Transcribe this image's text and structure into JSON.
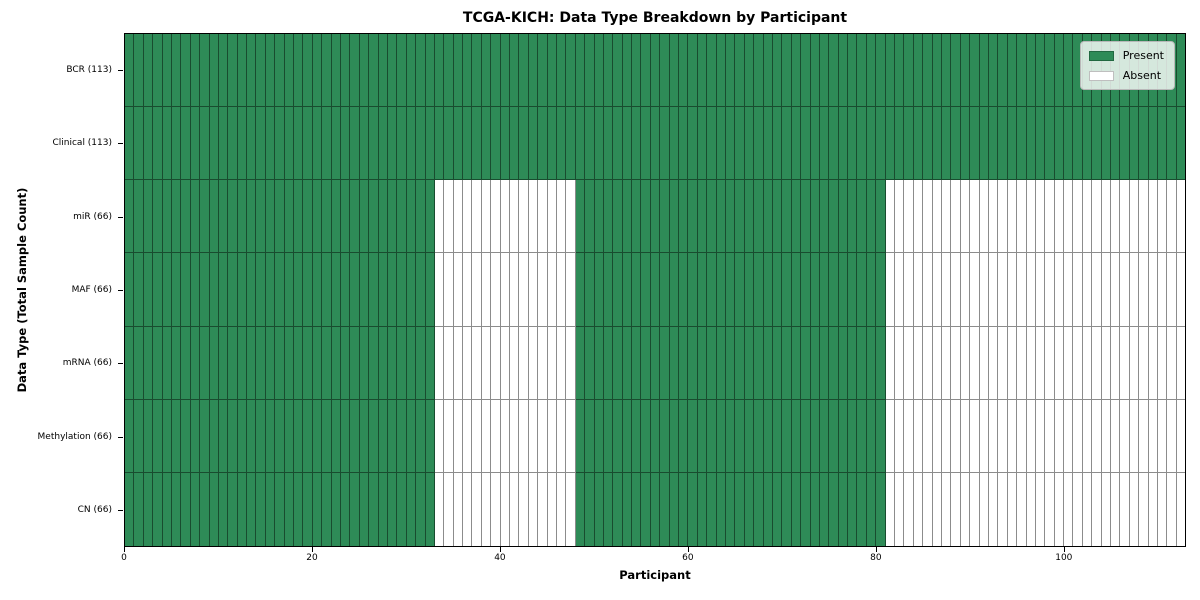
{
  "chart_data": {
    "type": "heatmap",
    "title": "TCGA-KICH: Data Type Breakdown by Participant",
    "xlabel": "Participant",
    "ylabel": "Data Type (Total Sample Count)",
    "n_participants": 113,
    "x_axis_range": [
      0,
      113
    ],
    "x_ticks": [
      0,
      20,
      40,
      60,
      80,
      100
    ],
    "colors": {
      "present": "#2e8b57",
      "absent": "#ffffff"
    },
    "legend": [
      {
        "label": "Present",
        "state": "present"
      },
      {
        "label": "Absent",
        "state": "absent"
      }
    ],
    "rows": [
      {
        "label": "BCR (113)",
        "present_count": 113,
        "present_ranges": [
          [
            0,
            113
          ]
        ]
      },
      {
        "label": "Clinical (113)",
        "present_count": 113,
        "present_ranges": [
          [
            0,
            113
          ]
        ]
      },
      {
        "label": "miR (66)",
        "present_count": 66,
        "present_ranges": [
          [
            0,
            33
          ],
          [
            48,
            81
          ]
        ]
      },
      {
        "label": "MAF (66)",
        "present_count": 66,
        "present_ranges": [
          [
            0,
            33
          ],
          [
            48,
            81
          ]
        ]
      },
      {
        "label": "mRNA (66)",
        "present_count": 66,
        "present_ranges": [
          [
            0,
            33
          ],
          [
            48,
            81
          ]
        ]
      },
      {
        "label": "Methylation (66)",
        "present_count": 66,
        "present_ranges": [
          [
            0,
            33
          ],
          [
            48,
            81
          ]
        ]
      },
      {
        "label": "CN (66)",
        "present_count": 66,
        "present_ranges": [
          [
            0,
            33
          ],
          [
            48,
            81
          ]
        ]
      }
    ]
  }
}
